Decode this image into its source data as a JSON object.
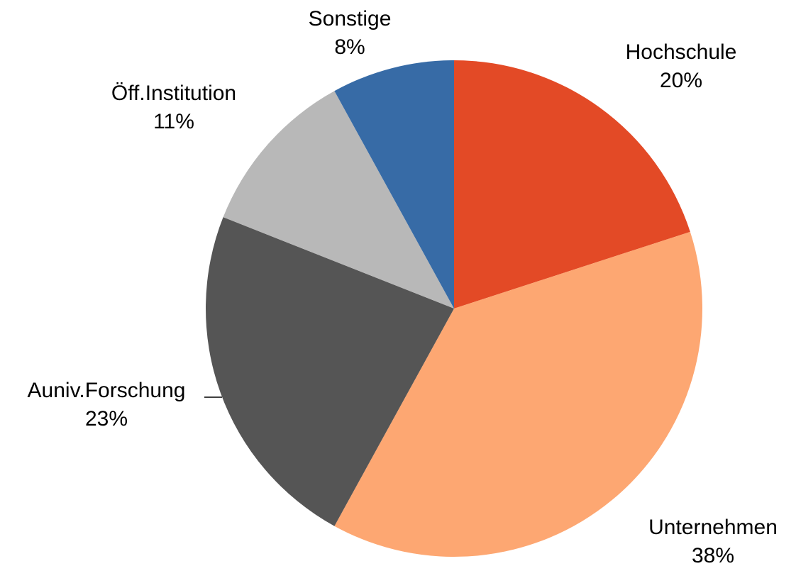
{
  "chart_data": {
    "type": "pie",
    "categories": [
      "Hochschule",
      "Unternehmen",
      "Auniv.Forschung",
      "Öff.Institution",
      "Sonstige"
    ],
    "values": [
      20,
      38,
      23,
      11,
      8
    ],
    "value_labels": [
      "20%",
      "38%",
      "23%",
      "11%",
      "8%"
    ],
    "colors": [
      "#e34a26",
      "#fda772",
      "#555555",
      "#b8b8b8",
      "#376ba6"
    ]
  }
}
